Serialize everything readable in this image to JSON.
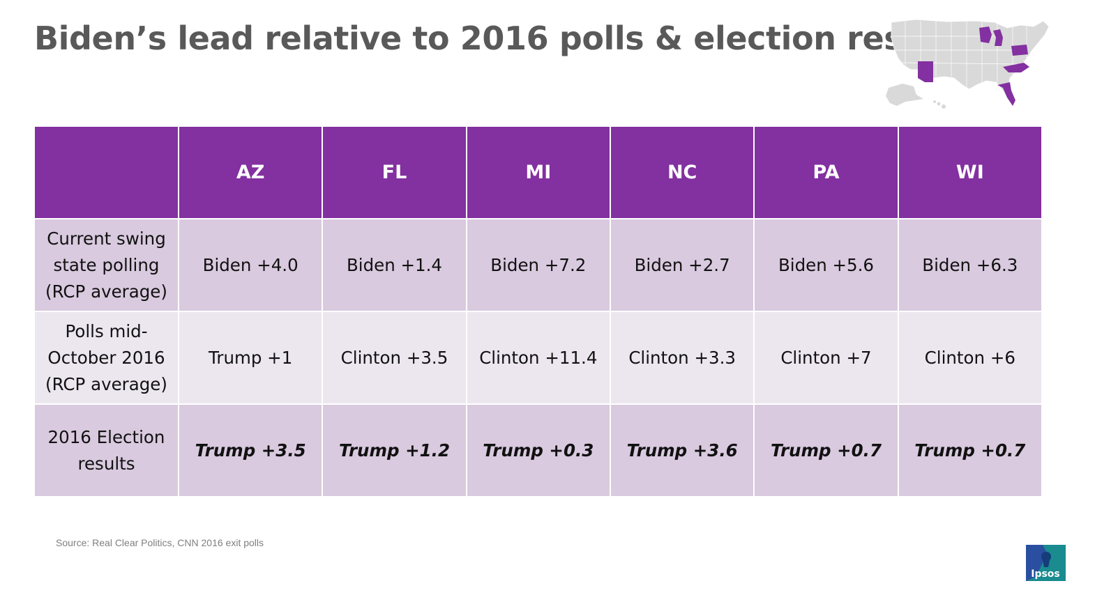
{
  "title": "Biden’s lead relative to 2016 polls & election results",
  "header": {
    "corner": "",
    "states": [
      "AZ",
      "FL",
      "MI",
      "NC",
      "PA",
      "WI"
    ]
  },
  "rows": [
    {
      "label": "Current swing state polling (RCP average)",
      "values": [
        "Biden +4.0",
        "Biden +1.4",
        "Biden +7.2",
        "Biden +2.7",
        "Biden +5.6",
        "Biden +6.3"
      ]
    },
    {
      "label": "Polls mid-October 2016 (RCP average)",
      "values": [
        "Trump +1",
        "Clinton +3.5",
        "Clinton +11.4",
        "Clinton +3.3",
        "Clinton +7",
        "Clinton +6"
      ]
    },
    {
      "label": "2016 Election results",
      "values": [
        "Trump +3.5",
        "Trump +1.2",
        "Trump +0.3",
        "Trump +3.6",
        "Trump +0.7",
        "Trump +0.7"
      ]
    }
  ],
  "source": "Source: Real Clear Politics, CNN 2016 exit polls",
  "logo_text": "Ipsos",
  "colors": {
    "header": "#8330a0",
    "row_dark": "#d9cadf",
    "row_light": "#ece6ef",
    "title": "#595959",
    "map_land": "#d9d9d9",
    "map_highlight": "#8330a0",
    "logo_bg": "#1a8b8f",
    "logo_accent": "#2a4fa0"
  }
}
